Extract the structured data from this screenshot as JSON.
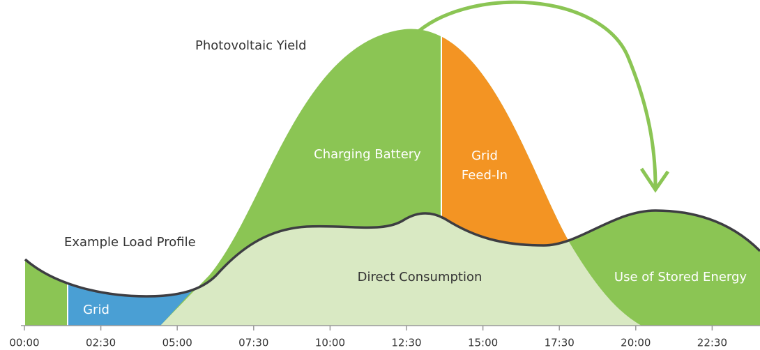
{
  "labels": {
    "pv_yield": "Photovoltaic Yield",
    "load_profile": "Example Load Profile",
    "charging": "Charging Battery",
    "feed_in": [
      "Grid",
      "Feed-In"
    ],
    "direct": "Direct Consumption",
    "stored": "Use of Stored Energy",
    "grid": "Grid"
  },
  "x_axis": {
    "ticks": [
      "00:00",
      "02:30",
      "05:00",
      "07:30",
      "10:00",
      "12:30",
      "15:00",
      "17:30",
      "20:00",
      "22:30"
    ]
  }
}
